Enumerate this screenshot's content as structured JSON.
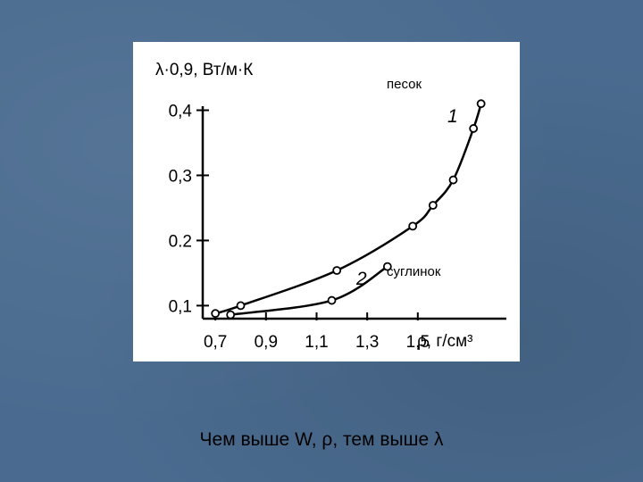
{
  "caption": "Чем выше W, ρ, тем выше λ",
  "chart_data": {
    "type": "line",
    "ylabel": "λ·0,9, Вт/м·К",
    "xlabel": "ρ, г/см³",
    "x_ticks": [
      "0,7",
      "0,9",
      "1,1",
      "1,3",
      "1,5"
    ],
    "x_tick_values": [
      0.7,
      0.9,
      1.1,
      1.3,
      1.5
    ],
    "y_ticks": [
      "0,1",
      "0.2",
      "0,3",
      "0,4"
    ],
    "y_tick_values": [
      0.1,
      0.2,
      0.3,
      0.4
    ],
    "xlim": [
      0.65,
      1.85
    ],
    "ylim": [
      0.08,
      0.45
    ],
    "annotations": [
      "песок",
      "суглинок"
    ],
    "series": [
      {
        "name": "1",
        "points": [
          [
            0.7,
            0.088
          ],
          [
            0.8,
            0.1
          ],
          [
            1.18,
            0.154
          ],
          [
            1.48,
            0.222
          ],
          [
            1.56,
            0.254
          ],
          [
            1.64,
            0.293
          ],
          [
            1.72,
            0.372
          ],
          [
            1.75,
            0.41
          ]
        ]
      },
      {
        "name": "2",
        "points": [
          [
            0.76,
            0.086
          ],
          [
            1.16,
            0.108
          ],
          [
            1.38,
            0.16
          ]
        ]
      }
    ],
    "grid": false
  }
}
